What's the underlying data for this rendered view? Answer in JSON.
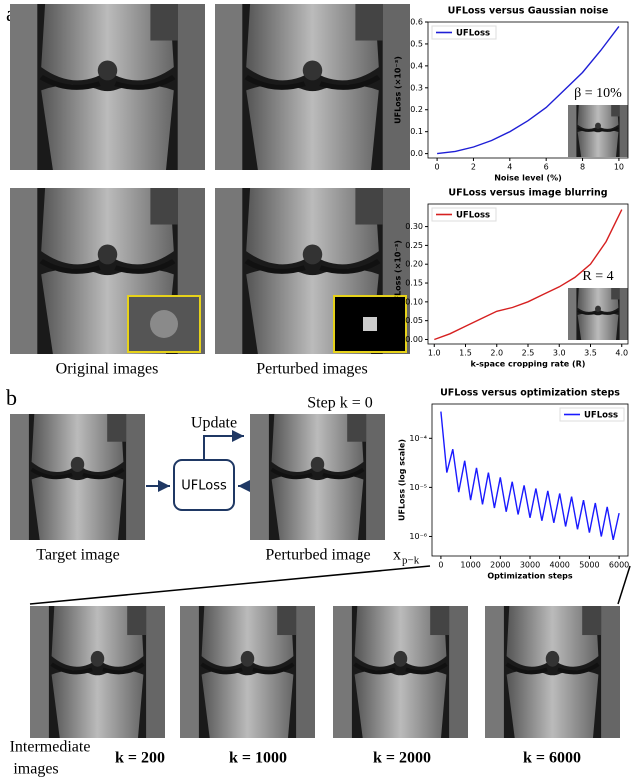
{
  "figure": {
    "panel_a": "a",
    "panel_b": "b",
    "caption_original": "Original images",
    "caption_perturbed": "Perturbed images",
    "update": "Update",
    "step": "Step k = 0",
    "box": "UFLoss",
    "caption_target": "Target image",
    "caption_perturbed_b": "Perturbed image",
    "symbol": "x",
    "subscript": "p−k",
    "intermediate_1": "Intermediate",
    "intermediate_2": "images",
    "steps": [
      "k = 200",
      "k = 1000",
      "k = 2000",
      "k = 6000"
    ]
  },
  "chart_data": [
    {
      "type": "line",
      "title": "UFLoss versus Gaussian noise",
      "x_label": "Noise level (%)",
      "y_label": "UFLoss (×10⁻³)",
      "annotation": "β = 10%",
      "legend": "upper left",
      "grid": false,
      "x": [
        0,
        1,
        2,
        3,
        4,
        5,
        6,
        7,
        8,
        9,
        10
      ],
      "series": [
        {
          "name": "UFLoss",
          "color": "#1f1fd6",
          "values": [
            0,
            0.01,
            0.03,
            0.06,
            0.1,
            0.15,
            0.21,
            0.29,
            0.37,
            0.47,
            0.58
          ]
        }
      ],
      "xlim": [
        -0.5,
        10.5
      ],
      "ylim": [
        -0.02,
        0.6
      ],
      "xticks": [
        0,
        2,
        4,
        6,
        8,
        10
      ],
      "yticks": [
        {
          "value": 0,
          "label": "0.0"
        },
        0.1,
        0.2,
        0.3,
        0.4,
        0.5,
        0.6
      ]
    },
    {
      "type": "line",
      "title": "UFLoss versus image blurring",
      "x_label": "k-space cropping rate (R)",
      "y_label": "UFLoss (×10⁻³)",
      "annotation": "R = 4",
      "legend": "upper left",
      "grid": false,
      "x": [
        1.0,
        1.25,
        1.5,
        1.75,
        2.0,
        2.25,
        2.5,
        2.75,
        3.0,
        3.25,
        3.5,
        3.75,
        4.0
      ],
      "series": [
        {
          "name": "UFLoss",
          "color": "#d62020",
          "values": [
            0,
            0.015,
            0.035,
            0.055,
            0.075,
            0.085,
            0.1,
            0.12,
            0.14,
            0.165,
            0.2,
            0.26,
            0.345
          ]
        }
      ],
      "xlim": [
        0.9,
        4.1
      ],
      "ylim": [
        -0.012,
        0.36
      ],
      "xticks": [
        {
          "value": 1,
          "label": "1.0"
        },
        1.5,
        {
          "value": 2,
          "label": "2.0"
        },
        2.5,
        {
          "value": 3,
          "label": "3.0"
        },
        3.5,
        {
          "value": 4,
          "label": "4.0"
        }
      ],
      "yticks": [
        {
          "value": 0,
          "label": "0.00"
        },
        {
          "value": 0.05,
          "label": "0.05"
        },
        {
          "value": 0.1,
          "label": "0.10"
        },
        {
          "value": 0.15,
          "label": "0.15"
        },
        {
          "value": 0.2,
          "label": "0.20"
        },
        {
          "value": 0.25,
          "label": "0.25"
        },
        {
          "value": 0.3,
          "label": "0.30"
        }
      ]
    },
    {
      "type": "line",
      "title": "UFLoss versus optimization steps",
      "x_label": "Optimization steps",
      "y_label": "UFLoss (log scale)",
      "legend": "upper right",
      "grid": false,
      "yscale": "log",
      "x": [
        0,
        200,
        400,
        600,
        800,
        1000,
        1200,
        1400,
        1600,
        1800,
        2000,
        2200,
        2400,
        2600,
        2800,
        3000,
        3200,
        3400,
        3600,
        3800,
        4000,
        4200,
        4400,
        4600,
        4800,
        5000,
        5200,
        5400,
        5600,
        5800,
        6000
      ],
      "series": [
        {
          "name": "UFLoss",
          "color": "#1a1aff",
          "values": [
            0.00035,
            2e-05,
            6e-05,
            8e-06,
            3.5e-05,
            5.5e-06,
            2.5e-05,
            4.5e-06,
            2e-05,
            3.8e-06,
            1.6e-05,
            3.2e-06,
            1.3e-05,
            2.8e-06,
            1.1e-05,
            2.4e-06,
            9.5e-06,
            2.1e-06,
            8.5e-06,
            1.9e-06,
            7.5e-06,
            1.6e-06,
            6.5e-06,
            1.4e-06,
            5.5e-06,
            1.2e-06,
            4.8e-06,
            1e-06,
            4e-06,
            8.5e-07,
            3e-06
          ]
        }
      ],
      "xlim": [
        -300,
        6300
      ],
      "ylim": [
        4e-07,
        0.0005
      ],
      "xticks": [
        0,
        1000,
        2000,
        3000,
        4000,
        5000,
        6000
      ],
      "yticks": [
        {
          "value": 1e-06,
          "label": "10⁻⁶"
        },
        {
          "value": 1e-05,
          "label": "10⁻⁵"
        },
        {
          "value": 0.0001,
          "label": "10⁻⁴"
        }
      ]
    }
  ]
}
